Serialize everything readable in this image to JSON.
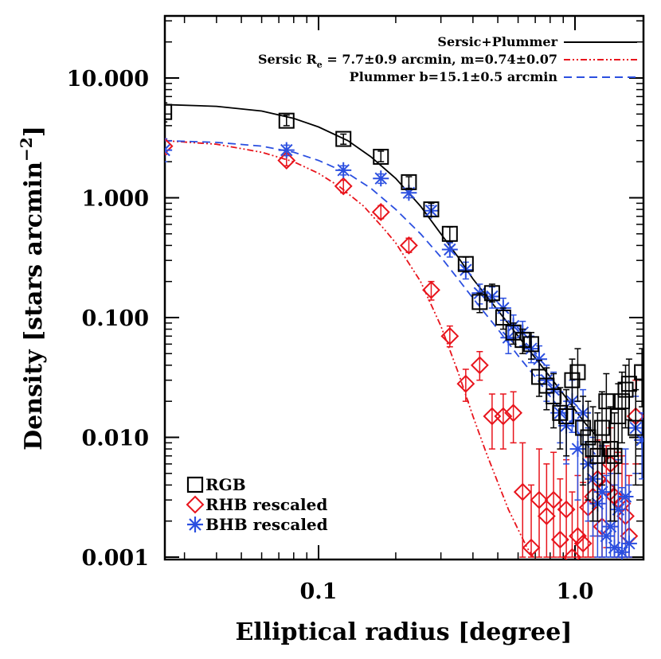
{
  "chart_data": {
    "type": "scatter",
    "title": "",
    "xlabel": "Elliptical radius [degree]",
    "ylabel": "Density [stars arcmin",
    "ylabel_sup": "−2",
    "ylabel_close": "]",
    "xscale": "log",
    "yscale": "log",
    "xlim": [
      0.02,
      2.0
    ],
    "ylim": [
      0.001,
      30
    ],
    "x_ticks": [
      0.1,
      1.0
    ],
    "x_tick_labels": [
      "0.1",
      "1.0"
    ],
    "y_ticks": [
      0.001,
      0.01,
      0.1,
      1,
      10
    ],
    "y_tick_labels": [
      "0.001",
      "0.010",
      "0.100",
      "1.000",
      "10.000"
    ],
    "legend_top": {
      "placement": "top-right",
      "entries": [
        {
          "label": "Sersic+Plummer",
          "color": "#000000",
          "style": "solid"
        },
        {
          "label": "Sersic R",
          "label_sub": "e",
          "label_rest": " = 7.7±0.9 arcmin, m=0.74±0.07",
          "color": "#e8141c",
          "style": "dashdot"
        },
        {
          "label": "Plummer b=15.1±0.5 arcmin",
          "color": "#2b4fe0",
          "style": "dashed"
        }
      ]
    },
    "legend_bottom": {
      "placement": "bottom-left",
      "entries": [
        {
          "label": "RGB",
          "marker": "square",
          "color": "#000000"
        },
        {
          "label": "RHB rescaled",
          "marker": "diamond",
          "color": "#e8141c"
        },
        {
          "label": "BHB rescaled",
          "marker": "asterisk",
          "color": "#2b4fe0"
        }
      ]
    },
    "models": [
      {
        "name": "Sersic+Plummer",
        "color": "#000000",
        "style": "solid",
        "x": [
          0.025,
          0.04,
          0.06,
          0.08,
          0.1,
          0.13,
          0.16,
          0.2,
          0.25,
          0.3,
          0.35,
          0.4,
          0.5,
          0.6,
          0.7,
          0.8,
          0.9,
          1.0,
          1.1,
          1.2
        ],
        "y": [
          6.0,
          5.8,
          5.3,
          4.6,
          3.9,
          3.0,
          2.2,
          1.45,
          0.85,
          0.5,
          0.32,
          0.21,
          0.115,
          0.07,
          0.046,
          0.032,
          0.023,
          0.017,
          0.013,
          0.0105
        ]
      },
      {
        "name": "Sersic",
        "color": "#e8141c",
        "style": "dashdot",
        "x": [
          0.025,
          0.04,
          0.06,
          0.08,
          0.1,
          0.12,
          0.15,
          0.18,
          0.2,
          0.25,
          0.3,
          0.35,
          0.4,
          0.45,
          0.5,
          0.55,
          0.6,
          0.65,
          0.7
        ],
        "y": [
          3.0,
          2.8,
          2.4,
          2.0,
          1.6,
          1.25,
          0.85,
          0.55,
          0.42,
          0.2,
          0.085,
          0.035,
          0.015,
          0.0075,
          0.0042,
          0.0025,
          0.0017,
          0.0012,
          0.00095
        ]
      },
      {
        "name": "Plummer",
        "color": "#2b4fe0",
        "style": "dashed",
        "x": [
          0.025,
          0.04,
          0.06,
          0.08,
          0.1,
          0.13,
          0.16,
          0.2,
          0.25,
          0.3,
          0.35,
          0.4,
          0.5,
          0.6,
          0.7,
          0.8,
          0.9,
          1.0,
          1.1,
          1.2
        ],
        "y": [
          3.0,
          2.9,
          2.7,
          2.4,
          2.05,
          1.6,
          1.2,
          0.8,
          0.5,
          0.32,
          0.21,
          0.145,
          0.08,
          0.048,
          0.032,
          0.022,
          0.016,
          0.012,
          0.009,
          0.0072
        ]
      }
    ],
    "series": [
      {
        "name": "RGB",
        "marker": "square",
        "color": "#000000",
        "points": [
          {
            "x": 0.025,
            "y": 5.2,
            "lo": 4.3,
            "hi": 6.2
          },
          {
            "x": 0.075,
            "y": 4.4,
            "lo": 4.0,
            "hi": 4.9
          },
          {
            "x": 0.125,
            "y": 3.1,
            "lo": 2.8,
            "hi": 3.4
          },
          {
            "x": 0.175,
            "y": 2.2,
            "lo": 2.0,
            "hi": 2.45
          },
          {
            "x": 0.225,
            "y": 1.35,
            "lo": 1.2,
            "hi": 1.5
          },
          {
            "x": 0.275,
            "y": 0.8,
            "lo": 0.7,
            "hi": 0.9
          },
          {
            "x": 0.325,
            "y": 0.5,
            "lo": 0.43,
            "hi": 0.57
          },
          {
            "x": 0.375,
            "y": 0.28,
            "lo": 0.24,
            "hi": 0.32
          },
          {
            "x": 0.425,
            "y": 0.135,
            "lo": 0.11,
            "hi": 0.16
          },
          {
            "x": 0.475,
            "y": 0.16,
            "lo": 0.135,
            "hi": 0.19
          },
          {
            "x": 0.525,
            "y": 0.1,
            "lo": 0.08,
            "hi": 0.12
          },
          {
            "x": 0.575,
            "y": 0.075,
            "lo": 0.06,
            "hi": 0.09
          },
          {
            "x": 0.625,
            "y": 0.065,
            "lo": 0.05,
            "hi": 0.08
          },
          {
            "x": 0.675,
            "y": 0.06,
            "lo": 0.045,
            "hi": 0.075
          },
          {
            "x": 0.725,
            "y": 0.032,
            "lo": 0.022,
            "hi": 0.044
          },
          {
            "x": 0.775,
            "y": 0.027,
            "lo": 0.017,
            "hi": 0.038
          },
          {
            "x": 0.825,
            "y": 0.022,
            "lo": 0.012,
            "hi": 0.034
          },
          {
            "x": 0.875,
            "y": 0.016,
            "lo": 0.008,
            "hi": 0.026
          },
          {
            "x": 0.925,
            "y": 0.015,
            "lo": 0.007,
            "hi": 0.025
          },
          {
            "x": 0.975,
            "y": 0.03,
            "lo": 0.018,
            "hi": 0.045
          },
          {
            "x": 1.025,
            "y": 0.035,
            "lo": 0.02,
            "hi": 0.055
          },
          {
            "x": 1.075,
            "y": 0.012,
            "lo": 0.004,
            "hi": 0.022
          },
          {
            "x": 1.125,
            "y": 0.01,
            "lo": 0.003,
            "hi": 0.02
          },
          {
            "x": 1.175,
            "y": 0.008,
            "lo": 0.002,
            "hi": 0.018
          },
          {
            "x": 1.225,
            "y": 0.007,
            "lo": 0.002,
            "hi": 0.016
          },
          {
            "x": 1.275,
            "y": 0.012,
            "lo": 0.004,
            "hi": 0.024
          },
          {
            "x": 1.325,
            "y": 0.02,
            "lo": 0.009,
            "hi": 0.034
          },
          {
            "x": 1.375,
            "y": 0.008,
            "lo": 0.002,
            "hi": 0.018
          },
          {
            "x": 1.425,
            "y": 0.007,
            "lo": 0.002,
            "hi": 0.016
          },
          {
            "x": 1.475,
            "y": 0.015,
            "lo": 0.005,
            "hi": 0.028
          },
          {
            "x": 1.525,
            "y": 0.02,
            "lo": 0.009,
            "hi": 0.035
          },
          {
            "x": 1.575,
            "y": 0.025,
            "lo": 0.012,
            "hi": 0.04
          },
          {
            "x": 1.625,
            "y": 0.028,
            "lo": 0.014,
            "hi": 0.045
          },
          {
            "x": 1.725,
            "y": 0.012,
            "lo": 0.004,
            "hi": 0.025
          },
          {
            "x": 1.825,
            "y": 0.035,
            "lo": 0.018,
            "hi": 0.055
          }
        ]
      },
      {
        "name": "RHB rescaled",
        "marker": "diamond",
        "color": "#e8141c",
        "points": [
          {
            "x": 0.025,
            "y": 2.7,
            "lo": 2.3,
            "hi": 3.1
          },
          {
            "x": 0.075,
            "y": 2.05,
            "lo": 1.85,
            "hi": 2.25
          },
          {
            "x": 0.125,
            "y": 1.25,
            "lo": 1.1,
            "hi": 1.4
          },
          {
            "x": 0.175,
            "y": 0.76,
            "lo": 0.67,
            "hi": 0.86
          },
          {
            "x": 0.225,
            "y": 0.4,
            "lo": 0.35,
            "hi": 0.46
          },
          {
            "x": 0.275,
            "y": 0.17,
            "lo": 0.14,
            "hi": 0.2
          },
          {
            "x": 0.325,
            "y": 0.07,
            "lo": 0.057,
            "hi": 0.085
          },
          {
            "x": 0.375,
            "y": 0.028,
            "lo": 0.02,
            "hi": 0.037
          },
          {
            "x": 0.425,
            "y": 0.04,
            "lo": 0.03,
            "hi": 0.052
          },
          {
            "x": 0.475,
            "y": 0.015,
            "lo": 0.008,
            "hi": 0.023
          },
          {
            "x": 0.525,
            "y": 0.015,
            "lo": 0.008,
            "hi": 0.023
          },
          {
            "x": 0.575,
            "y": 0.016,
            "lo": 0.009,
            "hi": 0.024
          },
          {
            "x": 0.625,
            "y": 0.0035,
            "lo": 0.001,
            "hi": 0.009
          },
          {
            "x": 0.675,
            "y": 0.0012,
            "lo": 0.001,
            "hi": 0.004
          },
          {
            "x": 0.725,
            "y": 0.003,
            "lo": 0.001,
            "hi": 0.008
          },
          {
            "x": 0.775,
            "y": 0.0022,
            "lo": 0.001,
            "hi": 0.006
          },
          {
            "x": 0.825,
            "y": 0.003,
            "lo": 0.001,
            "hi": 0.0075
          },
          {
            "x": 0.875,
            "y": 0.0014,
            "lo": 0.001,
            "hi": 0.0045
          },
          {
            "x": 0.925,
            "y": 0.0025,
            "lo": 0.001,
            "hi": 0.0065
          },
          {
            "x": 0.975,
            "y": 0.001,
            "lo": 0.001,
            "hi": 0.0035
          },
          {
            "x": 1.025,
            "y": 0.0015,
            "lo": 0.001,
            "hi": 0.0048
          },
          {
            "x": 1.075,
            "y": 0.0013,
            "lo": 0.001,
            "hi": 0.0042
          },
          {
            "x": 1.125,
            "y": 0.0026,
            "lo": 0.001,
            "hi": 0.0068
          },
          {
            "x": 1.175,
            "y": 0.0032,
            "lo": 0.001,
            "hi": 0.008
          },
          {
            "x": 1.225,
            "y": 0.0045,
            "lo": 0.0015,
            "hi": 0.0095
          },
          {
            "x": 1.275,
            "y": 0.0018,
            "lo": 0.001,
            "hi": 0.005
          },
          {
            "x": 1.325,
            "y": 0.0038,
            "lo": 0.0012,
            "hi": 0.0085
          },
          {
            "x": 1.375,
            "y": 0.006,
            "lo": 0.002,
            "hi": 0.012
          },
          {
            "x": 1.425,
            "y": 0.0032,
            "lo": 0.001,
            "hi": 0.008
          },
          {
            "x": 1.475,
            "y": 0.003,
            "lo": 0.001,
            "hi": 0.0075
          },
          {
            "x": 1.525,
            "y": 0.0028,
            "lo": 0.001,
            "hi": 0.007
          },
          {
            "x": 1.575,
            "y": 0.0022,
            "lo": 0.001,
            "hi": 0.006
          },
          {
            "x": 1.625,
            "y": 0.0015,
            "lo": 0.001,
            "hi": 0.0048
          },
          {
            "x": 1.725,
            "y": 0.015,
            "lo": 0.006,
            "hi": 0.03
          }
        ]
      },
      {
        "name": "BHB rescaled",
        "marker": "asterisk",
        "color": "#2b4fe0",
        "points": [
          {
            "x": 0.025,
            "y": 2.5,
            "lo": 2.0,
            "hi": 3.1
          },
          {
            "x": 0.075,
            "y": 2.5,
            "lo": 2.25,
            "hi": 2.75
          },
          {
            "x": 0.125,
            "y": 1.7,
            "lo": 1.55,
            "hi": 1.85
          },
          {
            "x": 0.175,
            "y": 1.45,
            "lo": 1.32,
            "hi": 1.58
          },
          {
            "x": 0.225,
            "y": 1.1,
            "lo": 1.0,
            "hi": 1.2
          },
          {
            "x": 0.275,
            "y": 0.78,
            "lo": 0.7,
            "hi": 0.86
          },
          {
            "x": 0.325,
            "y": 0.37,
            "lo": 0.32,
            "hi": 0.42
          },
          {
            "x": 0.375,
            "y": 0.25,
            "lo": 0.21,
            "hi": 0.29
          },
          {
            "x": 0.425,
            "y": 0.16,
            "lo": 0.13,
            "hi": 0.19
          },
          {
            "x": 0.475,
            "y": 0.15,
            "lo": 0.12,
            "hi": 0.18
          },
          {
            "x": 0.525,
            "y": 0.12,
            "lo": 0.095,
            "hi": 0.145
          },
          {
            "x": 0.55,
            "y": 0.068,
            "lo": 0.05,
            "hi": 0.086
          },
          {
            "x": 0.575,
            "y": 0.085,
            "lo": 0.067,
            "hi": 0.105
          },
          {
            "x": 0.625,
            "y": 0.075,
            "lo": 0.058,
            "hi": 0.093
          },
          {
            "x": 0.675,
            "y": 0.055,
            "lo": 0.042,
            "hi": 0.07
          },
          {
            "x": 0.725,
            "y": 0.045,
            "lo": 0.033,
            "hi": 0.058
          },
          {
            "x": 0.775,
            "y": 0.03,
            "lo": 0.02,
            "hi": 0.04
          },
          {
            "x": 0.825,
            "y": 0.025,
            "lo": 0.016,
            "hi": 0.035
          },
          {
            "x": 0.875,
            "y": 0.016,
            "lo": 0.009,
            "hi": 0.024
          },
          {
            "x": 0.925,
            "y": 0.0125,
            "lo": 0.006,
            "hi": 0.02
          },
          {
            "x": 0.975,
            "y": 0.02,
            "lo": 0.011,
            "hi": 0.03
          },
          {
            "x": 1.025,
            "y": 0.008,
            "lo": 0.003,
            "hi": 0.014
          },
          {
            "x": 1.075,
            "y": 0.016,
            "lo": 0.008,
            "hi": 0.025
          },
          {
            "x": 1.125,
            "y": 0.006,
            "lo": 0.002,
            "hi": 0.012
          },
          {
            "x": 1.175,
            "y": 0.0045,
            "lo": 0.0015,
            "hi": 0.01
          },
          {
            "x": 1.225,
            "y": 0.0028,
            "lo": 0.001,
            "hi": 0.007
          },
          {
            "x": 1.275,
            "y": 0.0035,
            "lo": 0.001,
            "hi": 0.0085
          },
          {
            "x": 1.325,
            "y": 0.0015,
            "lo": 0.001,
            "hi": 0.0048
          },
          {
            "x": 1.375,
            "y": 0.0018,
            "lo": 0.001,
            "hi": 0.005
          },
          {
            "x": 1.425,
            "y": 0.0012,
            "lo": 0.001,
            "hi": 0.004
          },
          {
            "x": 1.475,
            "y": 0.0025,
            "lo": 0.001,
            "hi": 0.0065
          },
          {
            "x": 1.525,
            "y": 0.0011,
            "lo": 0.001,
            "hi": 0.0038
          },
          {
            "x": 1.575,
            "y": 0.0032,
            "lo": 0.001,
            "hi": 0.008
          },
          {
            "x": 1.625,
            "y": 0.0013,
            "lo": 0.001,
            "hi": 0.004
          },
          {
            "x": 1.725,
            "y": 0.012,
            "lo": 0.005,
            "hi": 0.022
          },
          {
            "x": 1.825,
            "y": 0.0095,
            "lo": 0.0045,
            "hi": 0.016
          }
        ]
      }
    ]
  }
}
